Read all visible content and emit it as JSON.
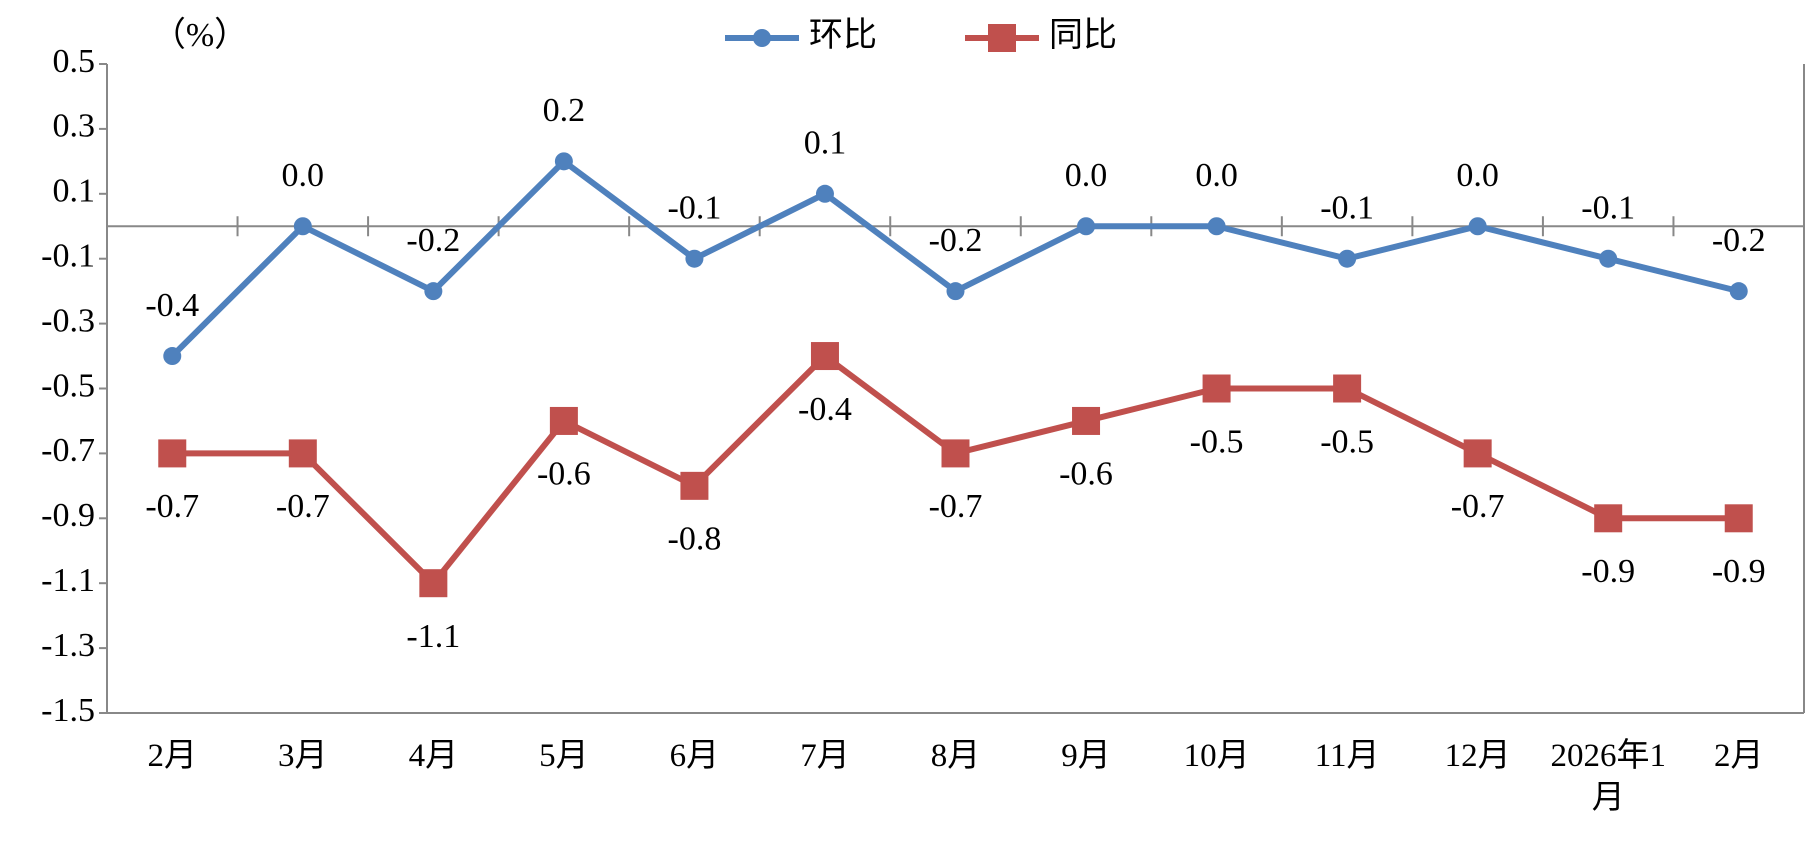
{
  "chart_data": {
    "type": "line",
    "y_label": "（%）",
    "categories": [
      "2月",
      "3月",
      "4月",
      "5月",
      "6月",
      "7月",
      "8月",
      "9月",
      "10月",
      "11月",
      "12月",
      "2026年1月",
      "2月"
    ],
    "series": [
      {
        "name": "环比",
        "color": "#4f81bd",
        "marker": "circle",
        "values": [
          -0.4,
          0.0,
          -0.2,
          0.2,
          -0.1,
          0.1,
          -0.2,
          0.0,
          0.0,
          -0.1,
          0.0,
          -0.1,
          -0.2
        ],
        "value_labels": [
          "-0.4",
          "0.0",
          "-0.2",
          "0.2",
          "-0.1",
          "0.1",
          "-0.2",
          "0.0",
          "0.0",
          "-0.1",
          "0.0",
          "-0.1",
          "-0.2"
        ]
      },
      {
        "name": "同比",
        "color": "#c0504d",
        "marker": "square",
        "values": [
          -0.7,
          -0.7,
          -1.1,
          -0.6,
          -0.8,
          -0.4,
          -0.7,
          -0.6,
          -0.5,
          -0.5,
          -0.7,
          -0.9,
          -0.9
        ],
        "value_labels": [
          "-0.7",
          "-0.7",
          "-1.1",
          "-0.6",
          "-0.8",
          "-0.4",
          "-0.7",
          "-0.6",
          "-0.5",
          "-0.5",
          "-0.7",
          "-0.9",
          "-0.9"
        ]
      }
    ],
    "ylim": [
      -1.5,
      0.5
    ],
    "yticks": [
      0.5,
      0.3,
      0.1,
      -0.1,
      -0.3,
      -0.5,
      -0.7,
      -0.9,
      -1.1,
      -1.3,
      -1.5
    ],
    "grid": false
  }
}
